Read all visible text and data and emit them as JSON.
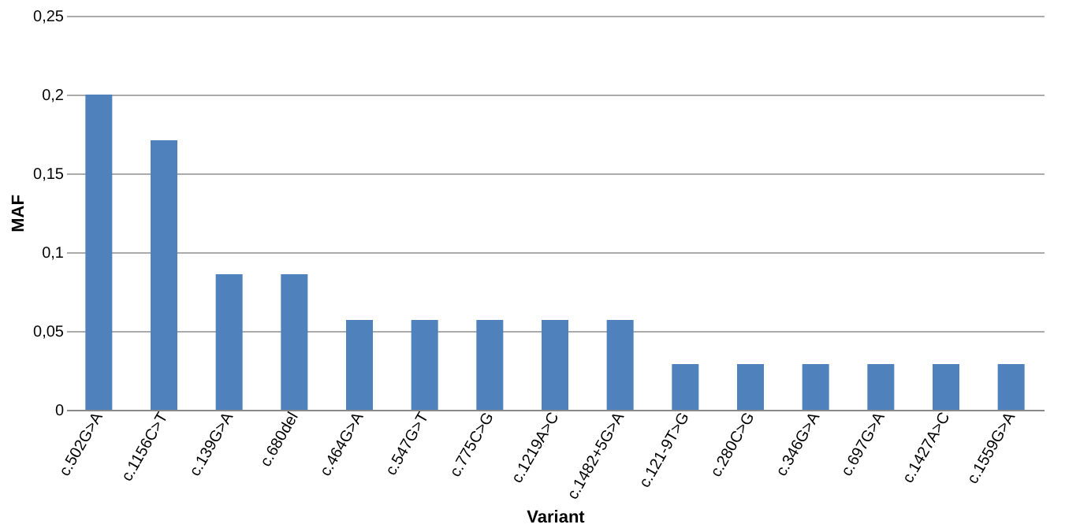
{
  "chart_data": {
    "type": "bar",
    "xlabel": "Variant",
    "ylabel": "MAF",
    "categories": [
      "c.502G>A",
      "c.1156C>T",
      "c.139G>A",
      "c.680del",
      "c.464G>A",
      "c.547G>T",
      "c.775C>G",
      "c.1219A>C",
      "c.1482+5G>A",
      "c.121-9T>G",
      "c.280C>G",
      "c.346G>A",
      "c.697G>A",
      "c.1427A>C",
      "c.1559G>A"
    ],
    "values": [
      0.2,
      0.171,
      0.086,
      0.086,
      0.057,
      0.057,
      0.057,
      0.057,
      0.057,
      0.029,
      0.029,
      0.029,
      0.029,
      0.029,
      0.029
    ],
    "color": "#4f81bd",
    "ylim": [
      0,
      0.25
    ],
    "yticks": [
      0,
      {
        "value": 0.05,
        "label": "0,05"
      },
      {
        "value": 0.1,
        "label": "0,1"
      },
      {
        "value": 0.15,
        "label": "0,15"
      },
      {
        "value": 0.2,
        "label": "0,2"
      },
      {
        "value": 0.25,
        "label": "0,25"
      }
    ],
    "grid": "y"
  }
}
